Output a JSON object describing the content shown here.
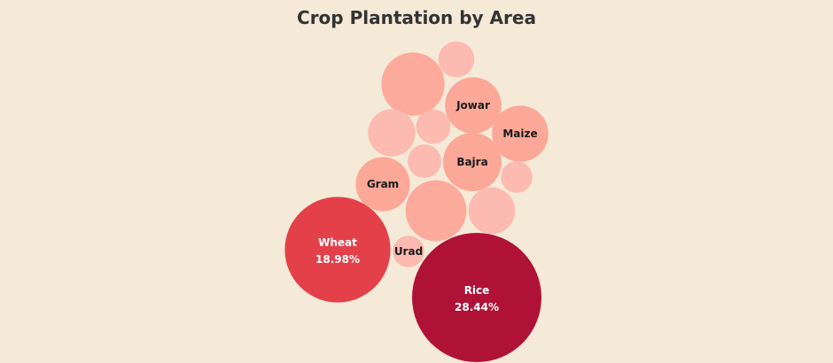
{
  "chart_data": {
    "type": "bubble",
    "title": "Crop Plantation by Area",
    "bubbles": [
      {
        "name": "Rice",
        "pct_label": "28.44%",
        "value": 28.44,
        "color": "#b01237",
        "text_color": "#ffffff"
      },
      {
        "name": "Wheat",
        "pct_label": "18.98%",
        "value": 18.98,
        "color": "#e4404a",
        "text_color": "#ffffff"
      },
      {
        "name": "Jowar",
        "pct_label": "",
        "value": 5.4,
        "color": "#fca898",
        "text_color": "#1a1a1a"
      },
      {
        "name": "Maize",
        "pct_label": "",
        "value": 5.4,
        "color": "#fca898",
        "text_color": "#1a1a1a"
      },
      {
        "name": "Bajra",
        "pct_label": "",
        "value": 5.8,
        "color": "#fca898",
        "text_color": "#1a1a1a"
      },
      {
        "name": "Gram",
        "pct_label": "",
        "value": 5.0,
        "color": "#fca898",
        "text_color": "#1a1a1a"
      },
      {
        "name": "Urad",
        "pct_label": "",
        "value": 1.7,
        "color": "#fcbab0",
        "text_color": "#1a1a1a"
      },
      {
        "name": "",
        "pct_label": "",
        "value": 6.3,
        "color": "#fcaa9c",
        "text_color": "#1a1a1a"
      },
      {
        "name": "",
        "pct_label": "",
        "value": 6.8,
        "color": "#fcaa9c",
        "text_color": "#1a1a1a"
      },
      {
        "name": "",
        "pct_label": "",
        "value": 3.7,
        "color": "#fcbab0",
        "text_color": "#1a1a1a"
      },
      {
        "name": "",
        "pct_label": "",
        "value": 3.8,
        "color": "#fcbab0",
        "text_color": "#1a1a1a"
      },
      {
        "name": "",
        "pct_label": "",
        "value": 2.2,
        "color": "#fcbab0",
        "text_color": "#1a1a1a"
      },
      {
        "name": "",
        "pct_label": "",
        "value": 2.0,
        "color": "#fcbab0",
        "text_color": "#1a1a1a"
      },
      {
        "name": "",
        "pct_label": "",
        "value": 1.9,
        "color": "#fcbab0",
        "text_color": "#1a1a1a"
      },
      {
        "name": "",
        "pct_label": "",
        "value": 1.7,
        "color": "#fcbab0",
        "text_color": "#1a1a1a"
      }
    ]
  }
}
